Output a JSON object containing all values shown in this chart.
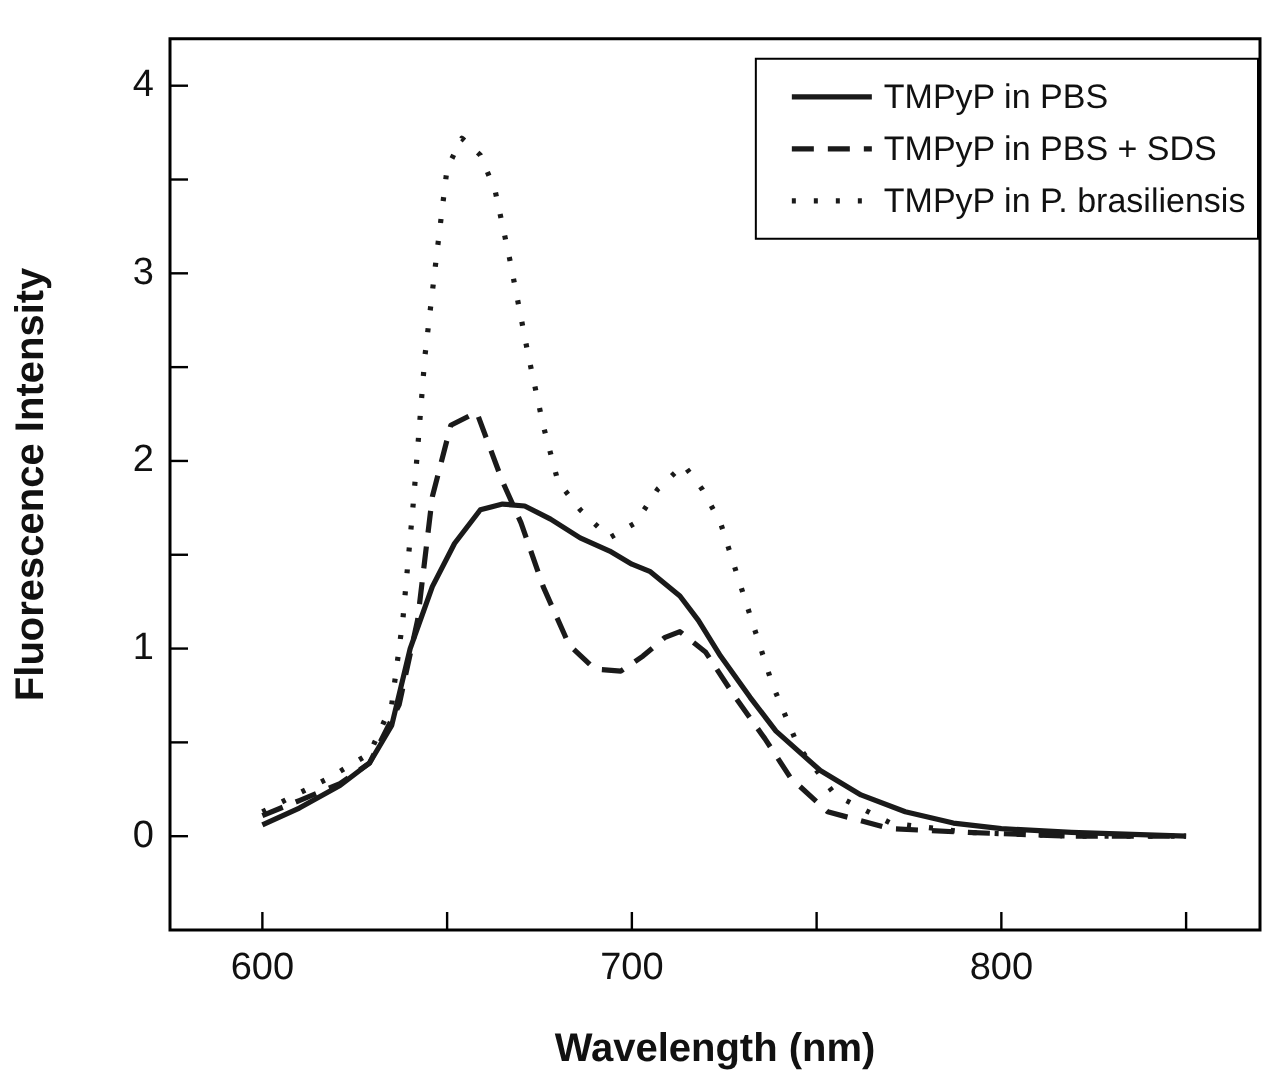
{
  "chart_data": {
    "type": "line",
    "xlabel": "Wavelength (nm)",
    "ylabel": "Fluorescence Intensity",
    "xlim": [
      575,
      870
    ],
    "ylim": [
      -0.5,
      4.25
    ],
    "xticks": [
      600,
      {
        "value": 650,
        "label": null
      },
      700,
      {
        "value": 750,
        "label": null
      },
      800,
      {
        "value": 850,
        "label": null
      }
    ],
    "yticks": [
      0,
      {
        "value": 0.5,
        "label": null
      },
      1,
      {
        "value": 1.5,
        "label": null
      },
      2,
      {
        "value": 2.5,
        "label": null
      },
      3,
      {
        "value": 3.5,
        "label": null
      },
      4
    ],
    "grid": false,
    "legend": "top right",
    "marker": "none",
    "series": [
      {
        "name": "TMPyP in PBS",
        "color": "#1a1a1a",
        "line_style": "solid",
        "x": [
          600,
          610,
          621,
          629,
          635,
          640,
          646,
          652,
          659,
          665,
          671,
          678,
          686,
          694,
          700,
          705,
          713,
          718,
          724,
          732,
          739,
          751,
          762,
          774,
          787,
          800,
          819,
          850
        ],
        "values": [
          0.06,
          0.15,
          0.27,
          0.39,
          0.59,
          1.0,
          1.33,
          1.56,
          1.74,
          1.77,
          1.76,
          1.69,
          1.59,
          1.52,
          1.45,
          1.41,
          1.28,
          1.15,
          0.96,
          0.74,
          0.56,
          0.35,
          0.22,
          0.13,
          0.07,
          0.04,
          0.02,
          0.0
        ]
      },
      {
        "name": "TMPyP in PBS + SDS",
        "color": "#1a1a1a",
        "line_style": "dashed",
        "x": [
          600,
          610,
          621,
          629,
          637,
          642,
          646,
          651,
          658,
          665,
          670,
          676,
          683,
          690,
          697,
          703,
          709,
          713,
          720,
          728,
          736,
          743,
          753,
          770,
          791,
          819,
          850
        ],
        "values": [
          0.11,
          0.19,
          0.28,
          0.39,
          0.7,
          1.15,
          1.81,
          2.19,
          2.26,
          1.89,
          1.67,
          1.33,
          1.02,
          0.89,
          0.88,
          0.96,
          1.06,
          1.09,
          0.98,
          0.74,
          0.52,
          0.31,
          0.13,
          0.04,
          0.02,
          0.0,
          0.0
        ]
      },
      {
        "name": "TMPyP in P. brasiliensis",
        "color": "#1a1a1a",
        "line_style": "dotted",
        "x": [
          600,
          618,
          629,
          635,
          638,
          641,
          644,
          647,
          650,
          654,
          659,
          663,
          667,
          672,
          676,
          680,
          686,
          694,
          701,
          707,
          714,
          719,
          724,
          730,
          738,
          745,
          755,
          770,
          791,
          819,
          850
        ],
        "values": [
          0.13,
          0.31,
          0.44,
          0.7,
          1.15,
          1.81,
          2.56,
          3.07,
          3.56,
          3.72,
          3.63,
          3.44,
          3.07,
          2.56,
          2.19,
          1.89,
          1.74,
          1.59,
          1.67,
          1.85,
          1.98,
          1.85,
          1.67,
          1.3,
          0.81,
          0.48,
          0.22,
          0.07,
          0.02,
          0.0,
          0.0
        ]
      }
    ]
  }
}
